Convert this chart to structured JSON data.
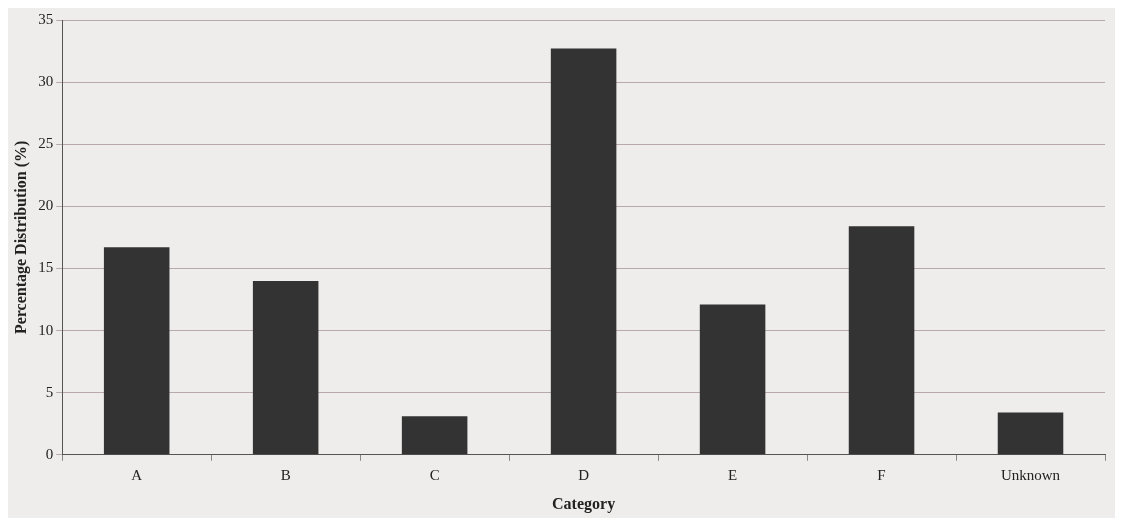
{
  "chart_data": {
    "type": "bar",
    "xlabel": "Category",
    "ylabel": "Percentage Distribution (%)",
    "categories": [
      "A",
      "B",
      "C",
      "D",
      "E",
      "F",
      "Unknown"
    ],
    "values": [
      16.7,
      14.0,
      3.1,
      32.7,
      12.1,
      18.4,
      3.4
    ],
    "color": "#333333",
    "ylim": [
      0,
      35
    ],
    "yticks": [
      0,
      5,
      10,
      15,
      20,
      25,
      30,
      35
    ],
    "grid": "y",
    "legend": false
  }
}
